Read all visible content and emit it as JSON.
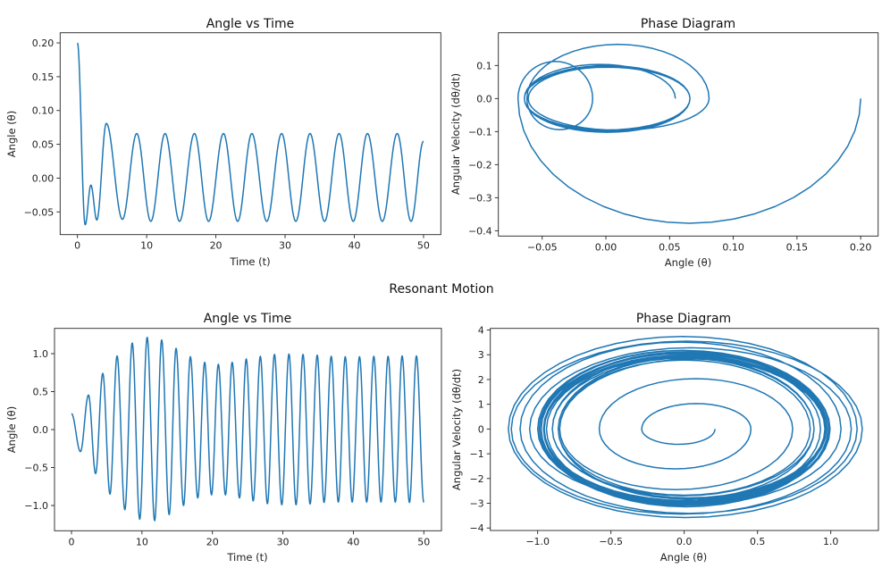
{
  "figure": {
    "section_title_resonant": "Resonant Motion",
    "line_color": "#1f77b4"
  },
  "chart_data": [
    {
      "type": "line",
      "title": "Angle vs Time",
      "xlabel": "Time (t)",
      "ylabel": "Angle (θ)",
      "xlim": [
        -2.5,
        52.5
      ],
      "ylim": [
        -0.0836,
        0.215
      ],
      "xticks": [
        0,
        10,
        20,
        30,
        40,
        50
      ],
      "xtick_labels": [
        "0",
        "10",
        "20",
        "30",
        "40",
        "50"
      ],
      "yticks": [
        -0.05,
        0.0,
        0.05,
        0.1,
        0.15,
        0.2
      ],
      "ytick_labels": [
        "−0.05",
        "0.00",
        "0.05",
        "0.10",
        "0.15",
        "0.20"
      ],
      "grid": false,
      "extrema_points": [
        [
          0,
          0.2
        ],
        [
          1.12,
          -0.069
        ],
        [
          1.94,
          -0.0104
        ],
        [
          2.8,
          -0.062
        ],
        [
          4.17,
          0.081
        ],
        [
          6.5,
          -0.061
        ],
        [
          8.57,
          0.066
        ],
        [
          10.6,
          -0.064
        ],
        [
          12.66,
          0.066
        ],
        [
          14.75,
          -0.064
        ],
        [
          16.9,
          0.066
        ],
        [
          18.95,
          -0.064
        ],
        [
          21.1,
          0.066
        ],
        [
          23.15,
          -0.064
        ],
        [
          25.2,
          0.066
        ],
        [
          27.35,
          -0.064
        ],
        [
          29.5,
          0.066
        ],
        [
          31.55,
          -0.064
        ],
        [
          33.6,
          0.066
        ],
        [
          35.7,
          -0.064
        ],
        [
          37.8,
          0.066
        ],
        [
          39.85,
          -0.064
        ],
        [
          41.9,
          0.066
        ],
        [
          44.05,
          -0.064
        ],
        [
          46.2,
          0.066
        ],
        [
          48.2,
          -0.064
        ],
        [
          50,
          0.0545
        ]
      ]
    },
    {
      "type": "line",
      "title": "Phase Diagram",
      "xlabel": "Angle (θ)",
      "ylabel": "Angular Velocity (dθ/dt)",
      "xlim": [
        -0.0844,
        0.2137
      ],
      "ylim": [
        -0.416,
        0.199
      ],
      "xticks": [
        -0.05,
        0.0,
        0.05,
        0.1,
        0.15,
        0.2
      ],
      "xtick_labels": [
        "−0.05",
        "0.00",
        "0.05",
        "0.10",
        "0.15",
        "0.20"
      ],
      "yticks": [
        -0.4,
        -0.3,
        -0.2,
        -0.1,
        0.0,
        0.1
      ],
      "ytick_labels": [
        "−0.4",
        "−0.3",
        "−0.2",
        "−0.1",
        "0.0",
        "0.1"
      ],
      "grid": false
    },
    {
      "type": "line",
      "title": "Angle vs Time",
      "xlabel": "Time (t)",
      "ylabel": "Angle (θ)",
      "xlim": [
        -2.41,
        52.5
      ],
      "ylim": [
        -1.333,
        1.333
      ],
      "xticks": [
        0,
        10,
        20,
        30,
        40,
        50
      ],
      "xtick_labels": [
        "0",
        "10",
        "20",
        "30",
        "40",
        "50"
      ],
      "yticks": [
        -1.0,
        -0.5,
        0.0,
        0.5,
        1.0
      ],
      "ytick_labels": [
        "−1.0",
        "−0.5",
        "0.0",
        "0.5",
        "1.0"
      ],
      "grid": false,
      "extrema_points": [
        [
          0,
          0.21
        ],
        [
          1.27,
          -0.29
        ],
        [
          2.41,
          0.455
        ],
        [
          3.42,
          -0.58
        ],
        [
          4.44,
          0.74
        ],
        [
          5.46,
          -0.85
        ],
        [
          6.47,
          0.97
        ],
        [
          7.57,
          -1.055
        ],
        [
          8.62,
          1.14
        ],
        [
          9.68,
          -1.18
        ],
        [
          10.74,
          1.215
        ],
        [
          11.8,
          -1.2
        ],
        [
          12.8,
          1.18
        ],
        [
          13.86,
          -1.12
        ],
        [
          14.84,
          1.07
        ],
        [
          15.9,
          -1.0
        ],
        [
          16.87,
          0.96
        ],
        [
          17.92,
          -0.9
        ],
        [
          18.9,
          0.886
        ],
        [
          19.87,
          -0.86
        ],
        [
          20.84,
          0.86
        ],
        [
          21.85,
          -0.86
        ],
        [
          22.8,
          0.886
        ],
        [
          23.84,
          -0.9
        ],
        [
          24.8,
          0.93
        ],
        [
          25.78,
          -0.94
        ],
        [
          26.8,
          0.965
        ],
        [
          27.8,
          -0.976
        ],
        [
          28.8,
          0.99
        ],
        [
          29.84,
          -0.99
        ],
        [
          30.86,
          0.995
        ],
        [
          31.87,
          -0.99
        ],
        [
          32.85,
          0.99
        ],
        [
          33.86,
          -0.98
        ],
        [
          34.87,
          0.98
        ],
        [
          35.84,
          -0.96
        ],
        [
          36.86,
          0.965
        ],
        [
          37.87,
          -0.955
        ],
        [
          38.85,
          0.96
        ],
        [
          39.83,
          -0.955
        ],
        [
          40.87,
          0.96
        ],
        [
          41.89,
          -0.955
        ],
        [
          42.9,
          0.965
        ],
        [
          43.92,
          -0.955
        ],
        [
          44.93,
          0.965
        ],
        [
          45.95,
          -0.955
        ],
        [
          46.92,
          0.97
        ],
        [
          47.96,
          -0.96
        ],
        [
          48.95,
          0.97
        ],
        [
          50,
          -0.96
        ]
      ]
    },
    {
      "type": "line",
      "title": "Phase Diagram",
      "xlabel": "Angle (θ)",
      "ylabel": "Angular Velocity (dθ/dt)",
      "xlim": [
        -1.323,
        1.325
      ],
      "ylim": [
        -4.1,
        4.065
      ],
      "xticks": [
        -1.0,
        -0.5,
        0.0,
        0.5,
        1.0
      ],
      "xtick_labels": [
        "−1.0",
        "−0.5",
        "0.0",
        "0.5",
        "1.0"
      ],
      "yticks": [
        -4,
        -3,
        -2,
        -1,
        0,
        1,
        2,
        3,
        4
      ],
      "ytick_labels": [
        "−4",
        "−3",
        "−2",
        "−1",
        "0",
        "1",
        "2",
        "3",
        "4"
      ],
      "grid": false
    }
  ]
}
